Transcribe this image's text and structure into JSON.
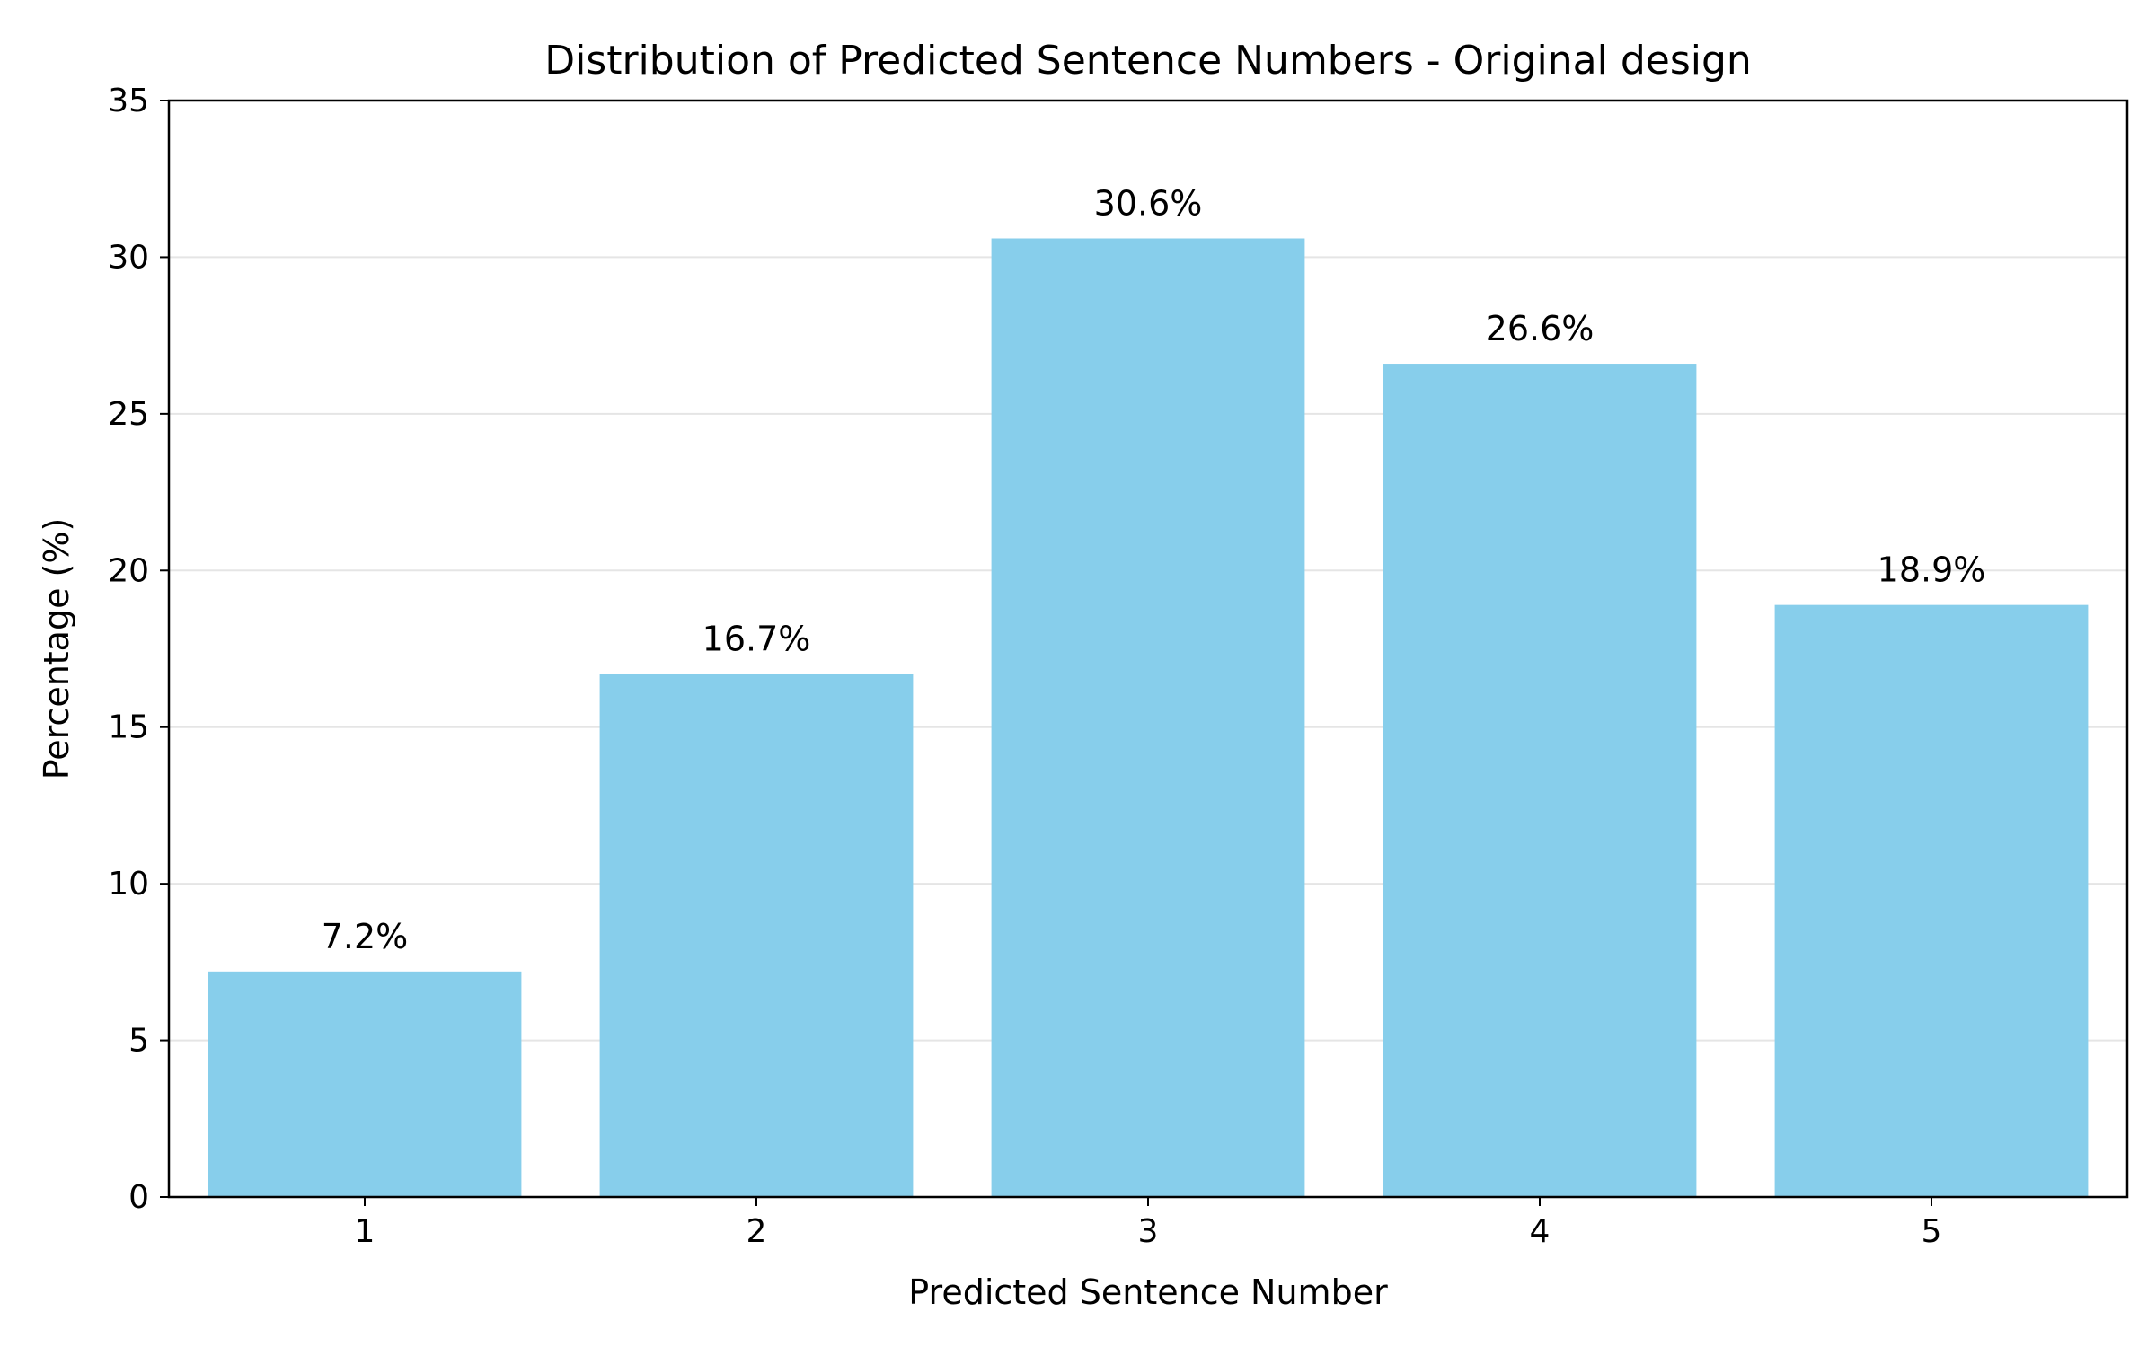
{
  "chart_data": {
    "type": "bar",
    "title": "Distribution of Predicted Sentence Numbers - Original design",
    "xlabel": "Predicted Sentence Number",
    "ylabel": "Percentage (%)",
    "categories": [
      "1",
      "2",
      "3",
      "4",
      "5"
    ],
    "values": [
      7.2,
      16.7,
      30.6,
      26.6,
      18.9
    ],
    "data_labels": [
      "7.2%",
      "16.7%",
      "30.6%",
      "26.6%",
      "18.9%"
    ],
    "ylim": [
      0,
      35
    ],
    "yticks": [
      "0",
      "5",
      "10",
      "15",
      "20",
      "25",
      "30",
      "35"
    ],
    "grid": "y",
    "bar_color": "#87CEEB",
    "legend": "none"
  }
}
